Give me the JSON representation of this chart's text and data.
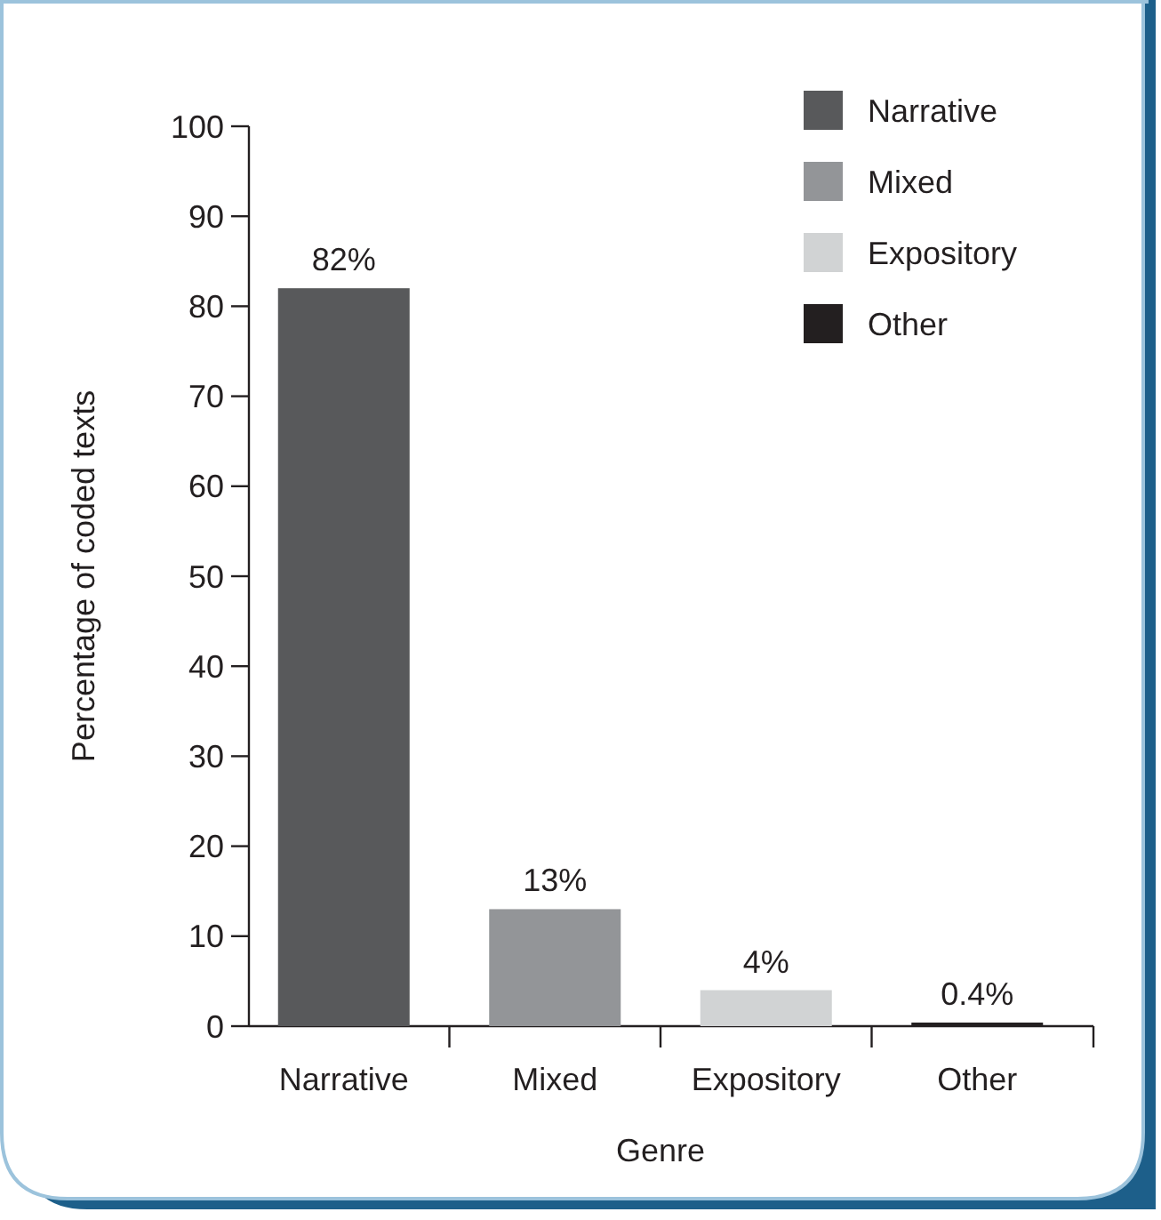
{
  "chart_data": {
    "type": "bar",
    "xlabel": "Genre",
    "ylabel": "Percentage of coded texts",
    "categories": [
      "Narrative",
      "Mixed",
      "Expository",
      "Other"
    ],
    "stacked": true,
    "series": [
      {
        "name": "Narrative",
        "color": "#58595b",
        "values": [
          82,
          null,
          null,
          null
        ],
        "value_labels": [
          "82%",
          null,
          null,
          null
        ]
      },
      {
        "name": "Mixed",
        "color": "#939598",
        "values": [
          null,
          13,
          null,
          null
        ],
        "value_labels": [
          null,
          "13%",
          null,
          null
        ]
      },
      {
        "name": "Expository",
        "color": "#d1d3d4",
        "values": [
          null,
          null,
          4,
          null
        ],
        "value_labels": [
          null,
          null,
          "4%",
          null
        ]
      },
      {
        "name": "Other",
        "color": "#231f20",
        "values": [
          null,
          null,
          null,
          0.4
        ],
        "value_labels": [
          null,
          null,
          null,
          "0.4%"
        ]
      }
    ],
    "ylim": [
      0,
      100
    ],
    "yticks": [
      0,
      10,
      20,
      30,
      40,
      50,
      60,
      70,
      80,
      90,
      100
    ],
    "grid": false,
    "legend": "top right"
  }
}
